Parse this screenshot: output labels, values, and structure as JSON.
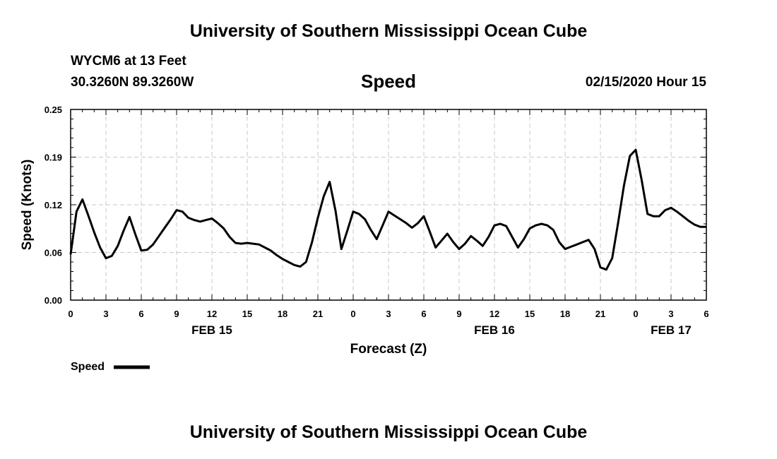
{
  "header": {
    "title": "University of Southern Mississippi Ocean Cube",
    "station": "WYCM6 at 13 Feet",
    "coordinates": "30.3260N 89.3260W",
    "variable": "Speed",
    "timestamp": "02/15/2020 Hour 15"
  },
  "footer": {
    "title": "University of Southern Mississippi Ocean Cube"
  },
  "chart_data": {
    "type": "line",
    "xlabel": "Forecast (Z)",
    "ylabel": "Speed (Knots)",
    "xlim": [
      0,
      54
    ],
    "ylim": [
      0,
      0.25
    ],
    "grid": true,
    "line_color": "#000000",
    "y_ticks": [
      "0.00",
      "0.06",
      "0.12",
      "0.19",
      "0.25"
    ],
    "y_tick_values": [
      0,
      0.0625,
      0.125,
      0.1875,
      0.25
    ],
    "x_ticks": [
      {
        "x": 0,
        "label": "0"
      },
      {
        "x": 3,
        "label": "3"
      },
      {
        "x": 6,
        "label": "6"
      },
      {
        "x": 9,
        "label": "9"
      },
      {
        "x": 12,
        "label": "12"
      },
      {
        "x": 15,
        "label": "15"
      },
      {
        "x": 18,
        "label": "18"
      },
      {
        "x": 21,
        "label": "21"
      },
      {
        "x": 24,
        "label": "0"
      },
      {
        "x": 27,
        "label": "3"
      },
      {
        "x": 30,
        "label": "6"
      },
      {
        "x": 33,
        "label": "9"
      },
      {
        "x": 36,
        "label": "12"
      },
      {
        "x": 39,
        "label": "15"
      },
      {
        "x": 42,
        "label": "18"
      },
      {
        "x": 45,
        "label": "21"
      },
      {
        "x": 48,
        "label": "0"
      },
      {
        "x": 51,
        "label": "3"
      },
      {
        "x": 54,
        "label": "6"
      }
    ],
    "date_labels": [
      {
        "x": 12,
        "label": "FEB 15"
      },
      {
        "x": 36,
        "label": "FEB 16"
      },
      {
        "x": 51,
        "label": "FEB 17"
      }
    ],
    "legend": {
      "label": "Speed",
      "position": "bottom-left"
    },
    "series": [
      {
        "name": "Speed",
        "x": [
          0,
          0.5,
          1,
          1.5,
          2,
          2.5,
          3,
          3.5,
          4,
          4.5,
          5,
          5.5,
          6,
          6.5,
          7,
          7.5,
          8,
          8.5,
          9,
          9.5,
          10,
          10.5,
          11,
          11.5,
          12,
          12.5,
          13,
          13.5,
          14,
          14.5,
          15,
          15.5,
          16,
          16.5,
          17,
          17.5,
          18,
          18.5,
          19,
          19.5,
          20,
          20.5,
          21,
          21.5,
          22,
          22.5,
          23,
          23.5,
          24,
          24.5,
          25,
          25.5,
          26,
          26.5,
          27,
          27.5,
          28,
          28.5,
          29,
          29.5,
          30,
          30.5,
          31,
          31.5,
          32,
          32.5,
          33,
          33.5,
          34,
          34.5,
          35,
          35.5,
          36,
          36.5,
          37,
          37.5,
          38,
          38.5,
          39,
          39.5,
          40,
          40.5,
          41,
          41.5,
          42,
          42.5,
          43,
          43.5,
          44,
          44.5,
          45,
          45.5,
          46,
          46.5,
          47,
          47.5,
          48,
          48.5,
          49,
          49.5,
          50,
          50.5,
          51,
          51.5,
          52,
          52.5,
          53,
          53.5,
          54
        ],
        "values": [
          0.06,
          0.116,
          0.132,
          0.111,
          0.089,
          0.069,
          0.055,
          0.058,
          0.071,
          0.091,
          0.109,
          0.086,
          0.065,
          0.066,
          0.073,
          0.084,
          0.095,
          0.106,
          0.118,
          0.116,
          0.108,
          0.105,
          0.103,
          0.105,
          0.107,
          0.101,
          0.094,
          0.083,
          0.075,
          0.074,
          0.075,
          0.074,
          0.073,
          0.069,
          0.065,
          0.059,
          0.054,
          0.05,
          0.046,
          0.044,
          0.05,
          0.076,
          0.108,
          0.136,
          0.155,
          0.117,
          0.067,
          0.091,
          0.116,
          0.113,
          0.106,
          0.092,
          0.08,
          0.098,
          0.116,
          0.111,
          0.106,
          0.101,
          0.095,
          0.101,
          0.11,
          0.09,
          0.069,
          0.078,
          0.087,
          0.076,
          0.067,
          0.074,
          0.084,
          0.078,
          0.071,
          0.083,
          0.098,
          0.1,
          0.097,
          0.083,
          0.069,
          0.08,
          0.094,
          0.098,
          0.1,
          0.098,
          0.092,
          0.076,
          0.067,
          0.07,
          0.073,
          0.076,
          0.079,
          0.067,
          0.043,
          0.04,
          0.055,
          0.101,
          0.15,
          0.189,
          0.197,
          0.158,
          0.113,
          0.11,
          0.11,
          0.118,
          0.121,
          0.116,
          0.11,
          0.104,
          0.099,
          0.096,
          0.096
        ]
      }
    ]
  }
}
